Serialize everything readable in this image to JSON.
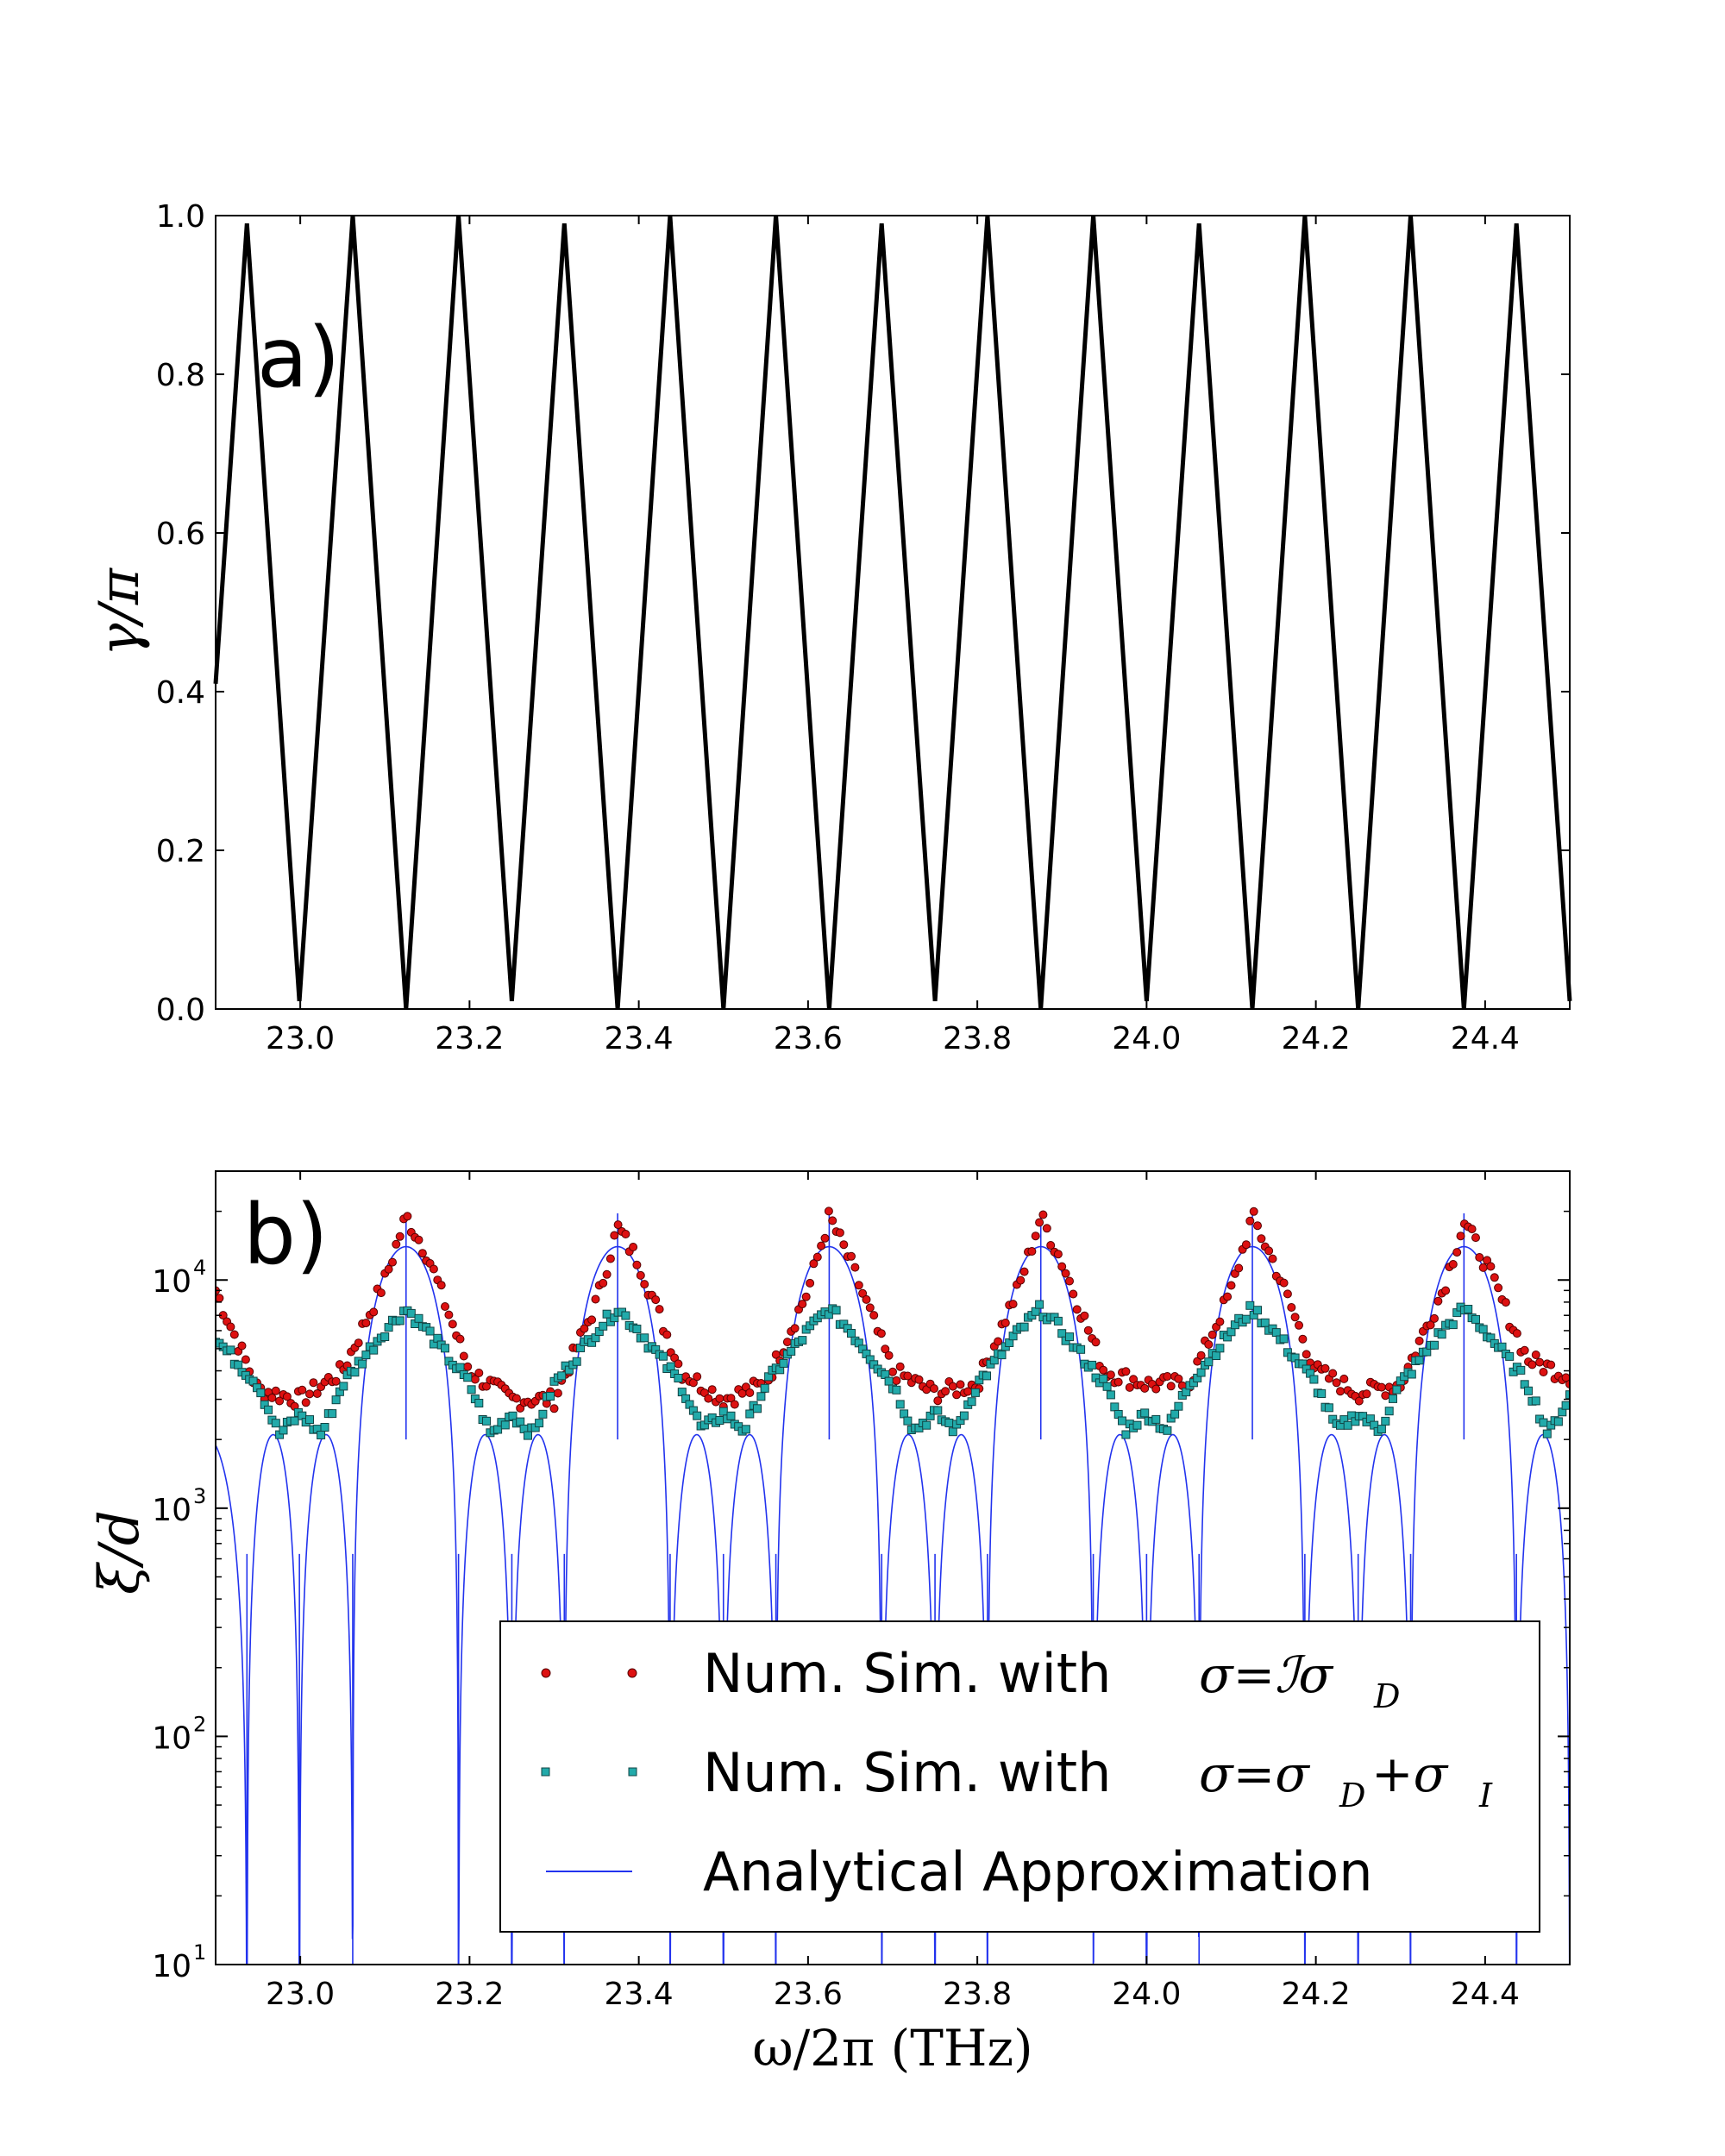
{
  "chart_data": [
    {
      "type": "line",
      "panel_label": "a)",
      "title": "",
      "xlabel": "",
      "ylabel": "γ/π",
      "xlim": [
        22.9,
        24.5
      ],
      "ylim": [
        0.0,
        1.0
      ],
      "x_ticks": [
        23.0,
        23.2,
        23.4,
        23.6,
        23.8,
        24.0,
        24.2,
        24.4
      ],
      "x_tick_labels": [
        "23.0",
        "23.2",
        "23.4",
        "23.6",
        "23.8",
        "24.0",
        "24.2",
        "24.4"
      ],
      "y_ticks": [
        0.0,
        0.2,
        0.4,
        0.6,
        0.8,
        1.0
      ],
      "y_tick_labels": [
        "0.0",
        "0.2",
        "0.4",
        "0.6",
        "0.8",
        "1.0"
      ],
      "grid": false,
      "series": [
        {
          "name": "γ/π",
          "color": "#000000",
          "x": [
            22.9,
            22.937,
            22.999,
            23.062,
            23.125,
            23.187,
            23.25,
            23.312,
            23.375,
            23.437,
            23.5,
            23.562,
            23.625,
            23.687,
            23.75,
            23.812,
            23.875,
            23.937,
            24.0,
            24.062,
            24.125,
            24.187,
            24.25,
            24.312,
            24.375,
            24.437,
            24.5
          ],
          "y": [
            0.41,
            0.99,
            0.01,
            1.0,
            0.0,
            1.0,
            0.01,
            0.99,
            0.0,
            1.0,
            0.0,
            1.0,
            0.0,
            0.99,
            0.01,
            1.0,
            0.0,
            1.0,
            0.01,
            0.99,
            0.0,
            1.0,
            0.0,
            1.0,
            0.0,
            0.99,
            0.01
          ]
        }
      ]
    },
    {
      "type": "line",
      "panel_label": "b)",
      "title": "",
      "xlabel": "ω/2π (THz)",
      "ylabel": "ξ/d",
      "yscale": "log",
      "xlim": [
        22.9,
        24.5
      ],
      "ylim": [
        10,
        30000
      ],
      "x_ticks": [
        23.0,
        23.2,
        23.4,
        23.6,
        23.8,
        24.0,
        24.2,
        24.4
      ],
      "x_tick_labels": [
        "23.0",
        "23.2",
        "23.4",
        "23.6",
        "23.8",
        "24.0",
        "24.2",
        "24.4"
      ],
      "y_ticks": [
        10,
        100,
        1000,
        10000
      ],
      "y_tick_labels": [
        "10",
        "10",
        "10",
        "10"
      ],
      "y_tick_exponents": [
        "1",
        "2",
        "3",
        "4"
      ],
      "grid": false,
      "legend_position": "lower-right",
      "series": [
        {
          "name": "Num. Sim. with σ=ℐσD",
          "legend_text": "Num. Sim. with",
          "legend_math": "σ=ℐσ",
          "legend_sub": "D",
          "marker": "circle",
          "color": "#dd1111",
          "x": [
            22.9,
            22.95,
            23.0,
            23.05,
            23.1,
            23.125,
            23.15,
            23.2,
            23.25,
            23.3,
            23.35,
            23.375,
            23.4,
            23.45,
            23.5,
            23.55,
            23.6,
            23.625,
            23.65,
            23.7,
            23.75,
            23.8,
            23.85,
            23.875,
            23.9,
            23.95,
            24.0,
            24.05,
            24.1,
            24.125,
            24.15,
            24.2,
            24.25,
            24.3,
            24.35,
            24.375,
            24.4,
            24.45,
            24.5
          ],
          "y": [
            9000,
            3300,
            3000,
            4000,
            10000,
            19000,
            13000,
            4000,
            3000,
            3000,
            8000,
            17000,
            12000,
            4000,
            3000,
            3500,
            9000,
            19000,
            12000,
            4000,
            3200,
            3500,
            9500,
            19000,
            12000,
            4000,
            3500,
            3500,
            9000,
            19000,
            12000,
            4000,
            3200,
            3500,
            9000,
            18000,
            12000,
            4500,
            3800
          ]
        },
        {
          "name": "Num. Sim. with σ=σD+σI",
          "legend_text": "Num. Sim. with",
          "legend_math": "σ=σ",
          "legend_sub": "D",
          "legend_math2": " +σ",
          "legend_sub2": "I",
          "marker": "square",
          "color": "#22aaaa",
          "x": [
            22.9,
            22.95,
            22.975,
            23.0,
            23.025,
            23.05,
            23.1,
            23.125,
            23.15,
            23.2,
            23.225,
            23.25,
            23.275,
            23.3,
            23.35,
            23.375,
            23.4,
            23.45,
            23.475,
            23.5,
            23.525,
            23.55,
            23.6,
            23.625,
            23.65,
            23.7,
            23.725,
            23.75,
            23.775,
            23.8,
            23.85,
            23.875,
            23.9,
            23.95,
            23.975,
            24.0,
            24.025,
            24.05,
            24.1,
            24.125,
            24.15,
            24.2,
            24.225,
            24.25,
            24.275,
            24.3,
            24.35,
            24.375,
            24.4,
            24.45,
            24.475,
            24.5
          ],
          "y": [
            5500,
            3500,
            2100,
            2600,
            2100,
            3500,
            6000,
            7500,
            6000,
            3500,
            2100,
            2600,
            2100,
            3500,
            6000,
            7500,
            6000,
            3500,
            2200,
            2600,
            2200,
            3500,
            6000,
            7500,
            6000,
            3500,
            2200,
            2600,
            2200,
            3500,
            6000,
            7500,
            6000,
            3500,
            2200,
            2600,
            2200,
            3500,
            6000,
            7500,
            6000,
            3500,
            2200,
            2600,
            2200,
            3500,
            6000,
            7500,
            6000,
            3500,
            2100,
            3100
          ]
        },
        {
          "name": "Analytical Approximation",
          "legend_text": "Analytical Approximation",
          "marker": "none",
          "color": "#2233ee",
          "peak_centers": [
            23.125,
            23.375,
            23.625,
            23.875,
            24.125,
            24.375
          ],
          "peak_values": [
            14000,
            14000,
            14000,
            14000,
            14000,
            14000
          ],
          "secondary_lobe_value": 2100,
          "zero_crossings": [
            22.937,
            22.999,
            23.062,
            23.187,
            23.25,
            23.312,
            23.437,
            23.5,
            23.562,
            23.687,
            23.75,
            23.812,
            23.937,
            24.0,
            24.062,
            24.187,
            24.25,
            24.312,
            24.437,
            24.5
          ]
        }
      ]
    }
  ]
}
